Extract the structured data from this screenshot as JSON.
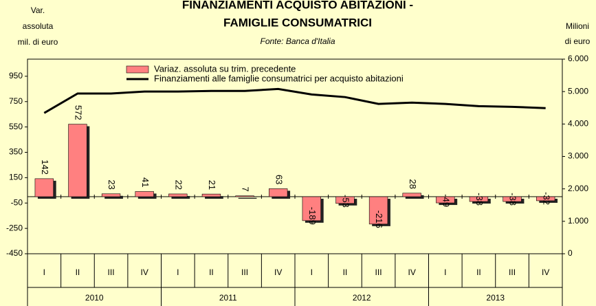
{
  "chart_data": {
    "type": "bar",
    "title": [
      "FINANZIAMENTI ACQUISTO ABITAZIONI -",
      "FAMIGLIE CONSUMATRICI"
    ],
    "subtitle": "Fonte: Banca d'Italia",
    "y_label": [
      "Var.",
      "assoluta",
      "mil. di euro"
    ],
    "y2_label": [
      "Milioni",
      "di euro"
    ],
    "categories": [
      "I",
      "II",
      "III",
      "IV",
      "I",
      "II",
      "III",
      "IV",
      "I",
      "II",
      "III",
      "IV",
      "I",
      "II",
      "III",
      "IV"
    ],
    "years": [
      "2010",
      "2011",
      "2012",
      "2013"
    ],
    "series": [
      {
        "name": "Variaz. assoluta su trim. precedente",
        "color": "#ff8080",
        "type": "bar",
        "values": [
          142,
          572,
          23,
          41,
          22,
          21,
          7,
          63,
          -189,
          -53,
          -216,
          28,
          -49,
          -38,
          -38,
          -32
        ]
      },
      {
        "name": "Finanziamenti alle famiglie consumatrici per acquisto abitazioni",
        "color": "#000000",
        "type": "line",
        "axis": "y2",
        "values": [
          4340,
          4940,
          4940,
          5000,
          5000,
          5020,
          5020,
          5080,
          4910,
          4830,
          4620,
          4660,
          4620,
          4550,
          4530,
          4490
        ]
      }
    ],
    "ylim": [
      -450,
      1085
    ],
    "yticks": [
      950,
      750,
      550,
      350,
      150,
      -50,
      -250,
      -450
    ],
    "y2lim": [
      0,
      6000
    ],
    "y2ticks": [
      {
        "value": 6000,
        "label": "6.000"
      },
      {
        "value": 5000,
        "label": "5.000"
      },
      {
        "value": 4000,
        "label": "4.000"
      },
      {
        "value": 3000,
        "label": "3.000"
      },
      {
        "value": 2000,
        "label": "2.000"
      },
      {
        "value": 1000,
        "label": "1.000"
      },
      0
    ],
    "legend": "top-left"
  }
}
